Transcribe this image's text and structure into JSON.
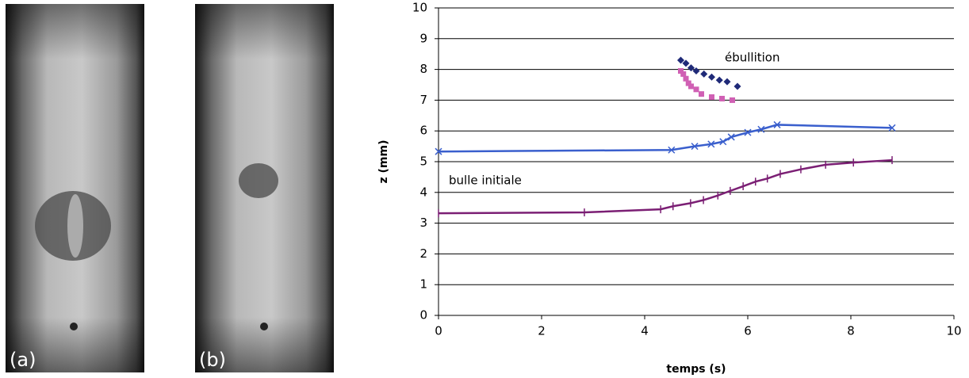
{
  "panels": [
    {
      "label": "(a)"
    },
    {
      "label": "(b)"
    }
  ],
  "chart_data": {
    "type": "line",
    "xlabel": "temps (s)",
    "ylabel": "z (mm)",
    "annotations": [
      "ébullition",
      "bulle initiale"
    ],
    "xlim": [
      0,
      10
    ],
    "xticks": [
      0,
      2,
      4,
      6,
      8,
      10
    ],
    "ylim": [
      0,
      10
    ],
    "yticks": [
      0,
      1,
      2,
      3,
      4,
      5,
      6,
      7,
      8,
      9,
      10
    ],
    "grid": true,
    "series": [
      {
        "name": null,
        "color": "#1f2a78",
        "marker": "diamond",
        "line": false,
        "x": [
          4.7,
          4.8,
          4.9,
          5.0,
          5.15,
          5.3,
          5.45,
          5.6,
          5.8
        ],
        "values": [
          8.3,
          8.2,
          8.05,
          7.95,
          7.85,
          7.75,
          7.65,
          7.6,
          7.45
        ]
      },
      {
        "name": null,
        "color": "#d060b4",
        "marker": "square",
        "line": false,
        "x": [
          4.7,
          4.75,
          4.8,
          4.85,
          4.9,
          5.0,
          5.1,
          5.3,
          5.5,
          5.7
        ],
        "values": [
          7.95,
          7.85,
          7.7,
          7.55,
          7.45,
          7.35,
          7.2,
          7.1,
          7.05,
          7.0
        ]
      },
      {
        "name": null,
        "color": "#3a5fcd",
        "marker": "x",
        "line": true,
        "x": [
          0,
          4.52,
          4.97,
          5.29,
          5.52,
          5.68,
          6.0,
          6.26,
          6.57,
          8.8
        ],
        "values": [
          5.33,
          5.38,
          5.5,
          5.57,
          5.65,
          5.8,
          5.95,
          6.05,
          6.2,
          6.1
        ]
      },
      {
        "name": null,
        "color": "#7b1f74",
        "marker": "plus",
        "line": true,
        "x": [
          0,
          2.83,
          4.31,
          4.55,
          4.89,
          5.14,
          5.42,
          5.66,
          5.91,
          6.15,
          6.38,
          6.63,
          7.03,
          7.51,
          8.05,
          8.8
        ],
        "values": [
          3.32,
          3.35,
          3.45,
          3.55,
          3.65,
          3.75,
          3.9,
          4.05,
          4.2,
          4.35,
          4.45,
          4.6,
          4.75,
          4.9,
          4.97,
          5.05
        ]
      }
    ]
  }
}
